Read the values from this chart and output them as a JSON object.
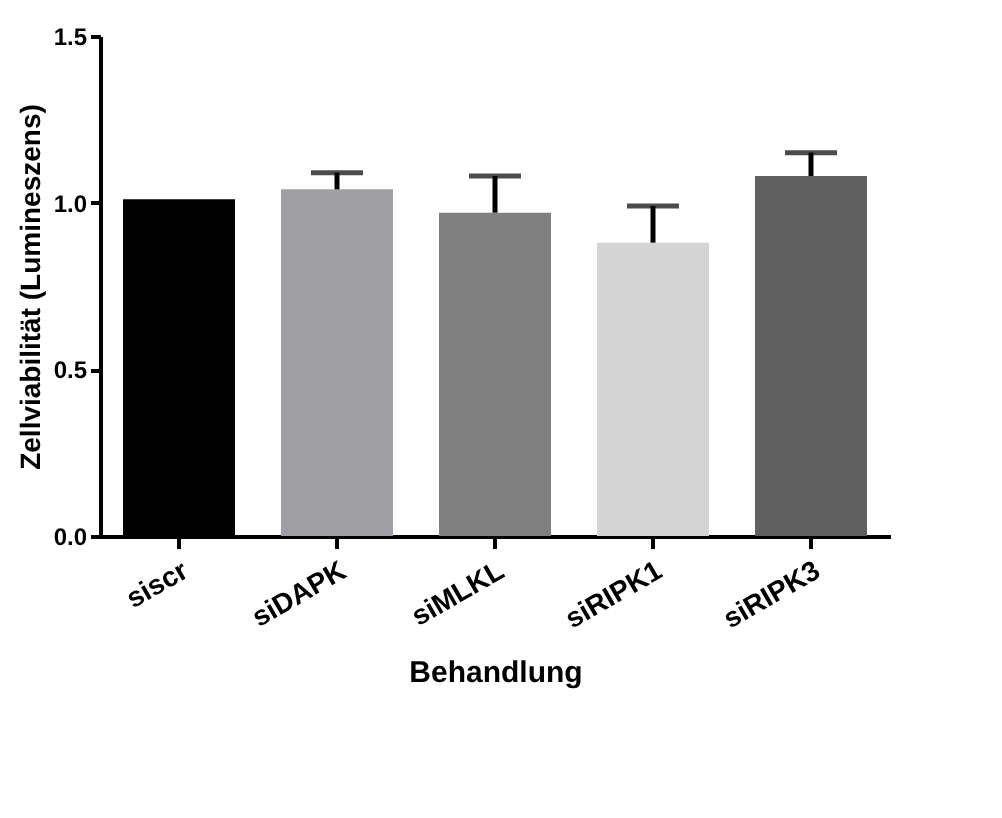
{
  "chart_data": {
    "type": "bar",
    "xlabel": "Behandlung",
    "ylabel": "Zellviabilität (Lumineszens)",
    "categories": [
      "siscr",
      "siDAPK",
      "siMLKL",
      "siRIPK1",
      "siRIPK3"
    ],
    "values": [
      1.01,
      1.04,
      0.97,
      0.88,
      1.08
    ],
    "colors": [
      "#000000",
      "#a0a0a4",
      "#808080",
      "#d4d4d4",
      "#606060"
    ],
    "errors": [
      null,
      [
        1.04,
        1.09
      ],
      [
        0.97,
        1.08
      ],
      [
        0.88,
        0.99
      ],
      [
        1.08,
        1.15
      ]
    ],
    "ylim": [
      0,
      1.5
    ],
    "yticks": [
      {
        "value": 0,
        "label": "0.0"
      },
      {
        "value": 0.5,
        "label": "0.5"
      },
      {
        "value": 1.0,
        "label": "1.0"
      },
      {
        "value": 1.5,
        "label": "1.5"
      }
    ],
    "grid": false
  }
}
